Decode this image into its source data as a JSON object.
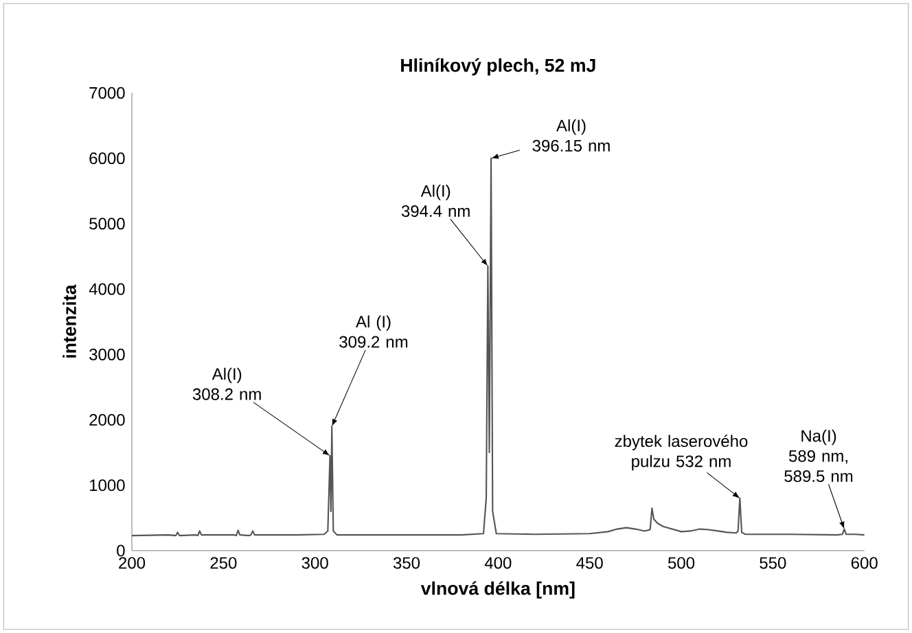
{
  "chart_data": {
    "type": "line",
    "title": "Hliníkový plech, 52 mJ",
    "xlabel": "vlnová délka  [nm]",
    "ylabel": "intenzita",
    "xlim": [
      200,
      600
    ],
    "xticks": [
      200,
      250,
      300,
      350,
      400,
      450,
      500,
      550,
      600
    ],
    "ylim": [
      0,
      7000
    ],
    "yticks": [
      0,
      1000,
      2000,
      3000,
      4000,
      5000,
      6000,
      7000
    ],
    "grid": false,
    "marker": "none",
    "line_style": "solid",
    "series": [
      {
        "color": "#555555",
        "x": [
          200,
          220,
          224,
          225,
          226,
          235,
          236,
          237,
          238,
          256,
          257,
          258,
          259,
          264,
          265,
          266,
          267,
          290,
          305,
          307,
          308.2,
          308.7,
          309.2,
          310,
          312,
          340,
          380,
          392,
          393.5,
          394.4,
          395.2,
          396.15,
          397,
          399,
          420,
          450,
          460,
          465,
          470,
          475,
          480,
          483,
          484,
          485,
          487,
          490,
          495,
          500,
          505,
          510,
          515,
          520,
          525,
          530,
          531,
          532,
          533,
          535,
          560,
          585,
          588,
          589,
          590,
          595,
          600
        ],
        "values": [
          230,
          240,
          230,
          280,
          230,
          240,
          230,
          300,
          240,
          240,
          230,
          310,
          240,
          230,
          240,
          300,
          240,
          240,
          250,
          300,
          1450,
          600,
          1900,
          300,
          240,
          240,
          240,
          260,
          800,
          4350,
          1500,
          6000,
          600,
          260,
          250,
          260,
          290,
          330,
          350,
          330,
          300,
          320,
          650,
          480,
          420,
          370,
          330,
          290,
          300,
          330,
          320,
          300,
          280,
          270,
          300,
          800,
          280,
          250,
          250,
          240,
          250,
          330,
          250,
          250,
          240
        ]
      }
    ],
    "annotations": [
      {
        "text": "Al(I) 308.2 nm",
        "x": 308.2,
        "y": 1450
      },
      {
        "text": "Al (I) 309.2 nm",
        "x": 309.2,
        "y": 1900
      },
      {
        "text": "Al(I) 394.4 nm",
        "x": 394.4,
        "y": 4350
      },
      {
        "text": "Al(I) 396.15 nm",
        "x": 396.15,
        "y": 6000
      },
      {
        "text": "zbytek laserového pulzu 532 nm",
        "x": 532,
        "y": 800
      },
      {
        "text": "Na(I) 589 nm, 589.5 nm",
        "x": 589,
        "y": 330
      }
    ]
  }
}
